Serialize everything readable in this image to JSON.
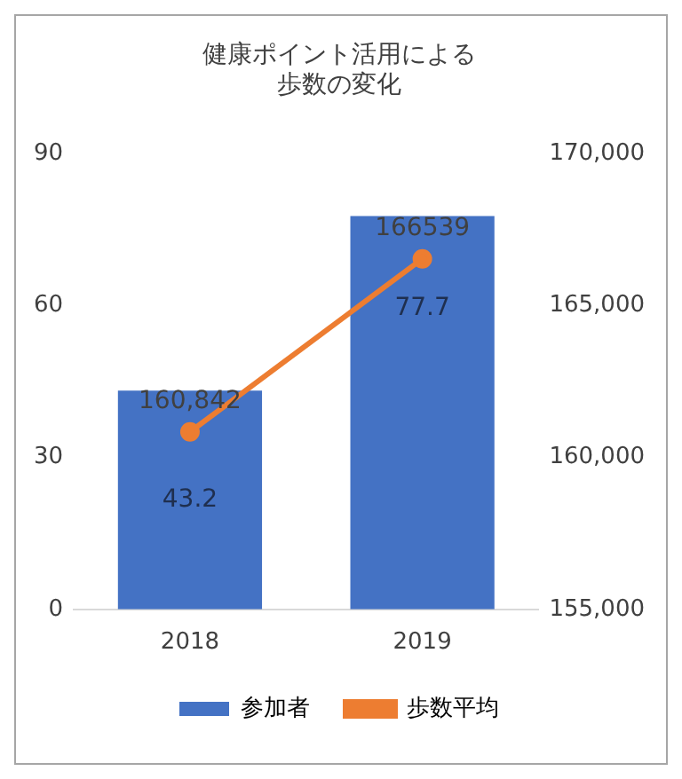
{
  "chart_data": {
    "type": "bar",
    "title": "健康ポイント活用による歩数の変化",
    "categories": [
      "2018",
      "2019"
    ],
    "series": [
      {
        "name": "参加者",
        "color": "#4472c4",
        "values": [
          43.2,
          77.7
        ],
        "value_labels": [
          "43.2",
          "77.7"
        ]
      },
      {
        "name": "歩数平均",
        "type": "line",
        "axis": "y2",
        "color": "#ed7d31",
        "values": [
          160842,
          166539
        ],
        "value_labels": [
          "160,842",
          "166539"
        ]
      }
    ],
    "ylim": [
      0,
      90
    ],
    "yticks": [
      0,
      30,
      60,
      90
    ],
    "y2lim": [
      155000,
      170000
    ],
    "y2ticks": [
      {
        "value": 155000,
        "label": "155,000"
      },
      {
        "value": 160000,
        "label": "160,000"
      },
      {
        "value": 165000,
        "label": "165,000"
      },
      {
        "value": 170000,
        "label": "170,000"
      }
    ],
    "grid": false,
    "legend": "bottom",
    "marker": "circle"
  }
}
